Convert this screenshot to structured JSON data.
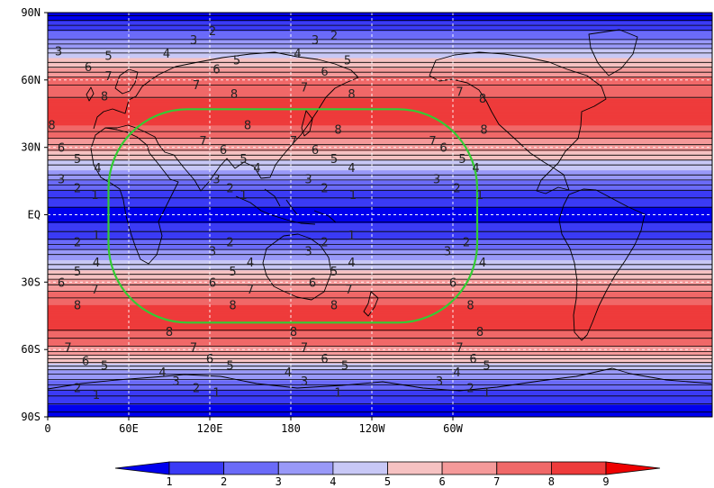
{
  "map": {
    "projection": "lat-lon",
    "grid": "dashed-white",
    "lat_labels": [
      "90N",
      "60N",
      "30N",
      "EQ",
      "30S",
      "60S",
      "90S"
    ],
    "lon_labels": [
      "0",
      "60E",
      "120E",
      "180",
      "120W",
      "60W"
    ],
    "lat_label_values": [
      90,
      60,
      30,
      0,
      -30,
      -60,
      -90
    ],
    "lon_label_values": [
      0,
      60,
      120,
      180,
      240,
      300
    ],
    "region_box": {
      "shape": "rounded-rectangle",
      "color": "#33cc33",
      "lon_range": [
        45,
        318
      ],
      "lat_range": [
        -48,
        47
      ]
    },
    "contour_labels": [
      {
        "text": "3",
        "lon": 8,
        "lat": 73
      },
      {
        "text": "5",
        "lon": 45,
        "lat": 71
      },
      {
        "text": "4",
        "lon": 88,
        "lat": 72
      },
      {
        "text": "3",
        "lon": 108,
        "lat": 78
      },
      {
        "text": "2",
        "lon": 122,
        "lat": 82
      },
      {
        "text": "5",
        "lon": 140,
        "lat": 69
      },
      {
        "text": "6",
        "lon": 125,
        "lat": 65
      },
      {
        "text": "7",
        "lon": 110,
        "lat": 58
      },
      {
        "text": "8",
        "lon": 138,
        "lat": 54
      },
      {
        "text": "6",
        "lon": 30,
        "lat": 66
      },
      {
        "text": "7",
        "lon": 45,
        "lat": 62
      },
      {
        "text": "8",
        "lon": 42,
        "lat": 53
      },
      {
        "text": "4",
        "lon": 185,
        "lat": 72
      },
      {
        "text": "3",
        "lon": 198,
        "lat": 78
      },
      {
        "text": "2",
        "lon": 212,
        "lat": 80
      },
      {
        "text": "6",
        "lon": 205,
        "lat": 64
      },
      {
        "text": "5",
        "lon": 222,
        "lat": 69
      },
      {
        "text": "7",
        "lon": 190,
        "lat": 57
      },
      {
        "text": "8",
        "lon": 225,
        "lat": 54
      },
      {
        "text": "7",
        "lon": 305,
        "lat": 55
      },
      {
        "text": "8",
        "lon": 322,
        "lat": 52
      },
      {
        "text": "8",
        "lon": 3,
        "lat": 40
      },
      {
        "text": "7",
        "lon": 115,
        "lat": 33
      },
      {
        "text": "6",
        "lon": 130,
        "lat": 29
      },
      {
        "text": "5",
        "lon": 145,
        "lat": 25
      },
      {
        "text": "4",
        "lon": 155,
        "lat": 21
      },
      {
        "text": "8",
        "lon": 148,
        "lat": 40
      },
      {
        "text": "7",
        "lon": 182,
        "lat": 33
      },
      {
        "text": "6",
        "lon": 198,
        "lat": 29
      },
      {
        "text": "5",
        "lon": 212,
        "lat": 25
      },
      {
        "text": "4",
        "lon": 225,
        "lat": 21
      },
      {
        "text": "3",
        "lon": 193,
        "lat": 16
      },
      {
        "text": "2",
        "lon": 205,
        "lat": 12
      },
      {
        "text": "1",
        "lon": 226,
        "lat": 9
      },
      {
        "text": "8",
        "lon": 215,
        "lat": 38
      },
      {
        "text": "7",
        "lon": 285,
        "lat": 33
      },
      {
        "text": "6",
        "lon": 293,
        "lat": 30
      },
      {
        "text": "5",
        "lon": 307,
        "lat": 25
      },
      {
        "text": "4",
        "lon": 317,
        "lat": 21
      },
      {
        "text": "3",
        "lon": 288,
        "lat": 16
      },
      {
        "text": "2",
        "lon": 303,
        "lat": 12
      },
      {
        "text": "1",
        "lon": 320,
        "lat": 9
      },
      {
        "text": "8",
        "lon": 323,
        "lat": 38
      },
      {
        "text": "6",
        "lon": 10,
        "lat": 30
      },
      {
        "text": "5",
        "lon": 22,
        "lat": 25
      },
      {
        "text": "4",
        "lon": 37,
        "lat": 21
      },
      {
        "text": "3",
        "lon": 10,
        "lat": 16
      },
      {
        "text": "2",
        "lon": 22,
        "lat": 12
      },
      {
        "text": "1",
        "lon": 35,
        "lat": 9
      },
      {
        "text": "3",
        "lon": 125,
        "lat": 16
      },
      {
        "text": "2",
        "lon": 135,
        "lat": 12
      },
      {
        "text": "1",
        "lon": 145,
        "lat": 9
      },
      {
        "text": "2",
        "lon": 22,
        "lat": -12
      },
      {
        "text": "1",
        "lon": 36,
        "lat": -9
      },
      {
        "text": "4",
        "lon": 36,
        "lat": -21
      },
      {
        "text": "5",
        "lon": 22,
        "lat": -25
      },
      {
        "text": "6",
        "lon": 10,
        "lat": -30
      },
      {
        "text": "7",
        "lon": 35,
        "lat": -33
      },
      {
        "text": "8",
        "lon": 22,
        "lat": -40
      },
      {
        "text": "3",
        "lon": 122,
        "lat": -16
      },
      {
        "text": "2",
        "lon": 135,
        "lat": -12
      },
      {
        "text": "5",
        "lon": 137,
        "lat": -25
      },
      {
        "text": "4",
        "lon": 150,
        "lat": -21
      },
      {
        "text": "6",
        "lon": 122,
        "lat": -30
      },
      {
        "text": "7",
        "lon": 150,
        "lat": -33
      },
      {
        "text": "8",
        "lon": 137,
        "lat": -40
      },
      {
        "text": "3",
        "lon": 193,
        "lat": -16
      },
      {
        "text": "2",
        "lon": 205,
        "lat": -12
      },
      {
        "text": "1",
        "lon": 225,
        "lat": -9
      },
      {
        "text": "5",
        "lon": 212,
        "lat": -25
      },
      {
        "text": "4",
        "lon": 225,
        "lat": -21
      },
      {
        "text": "6",
        "lon": 196,
        "lat": -30
      },
      {
        "text": "7",
        "lon": 223,
        "lat": -33
      },
      {
        "text": "8",
        "lon": 212,
        "lat": -40
      },
      {
        "text": "3",
        "lon": 296,
        "lat": -16
      },
      {
        "text": "2",
        "lon": 310,
        "lat": -12
      },
      {
        "text": "4",
        "lon": 322,
        "lat": -21
      },
      {
        "text": "6",
        "lon": 300,
        "lat": -30
      },
      {
        "text": "8",
        "lon": 313,
        "lat": -40
      },
      {
        "text": "8",
        "lon": 90,
        "lat": -52
      },
      {
        "text": "8",
        "lon": 182,
        "lat": -52
      },
      {
        "text": "8",
        "lon": 320,
        "lat": -52
      },
      {
        "text": "7",
        "lon": 15,
        "lat": -59
      },
      {
        "text": "6",
        "lon": 28,
        "lat": -65
      },
      {
        "text": "5",
        "lon": 42,
        "lat": -67
      },
      {
        "text": "4",
        "lon": 85,
        "lat": -70
      },
      {
        "text": "3",
        "lon": 95,
        "lat": -74
      },
      {
        "text": "2",
        "lon": 110,
        "lat": -77
      },
      {
        "text": "1",
        "lon": 125,
        "lat": -79
      },
      {
        "text": "2",
        "lon": 22,
        "lat": -77
      },
      {
        "text": "1",
        "lon": 36,
        "lat": -80
      },
      {
        "text": "7",
        "lon": 108,
        "lat": -59
      },
      {
        "text": "6",
        "lon": 120,
        "lat": -64
      },
      {
        "text": "5",
        "lon": 135,
        "lat": -67
      },
      {
        "text": "7",
        "lon": 190,
        "lat": -59
      },
      {
        "text": "6",
        "lon": 205,
        "lat": -64
      },
      {
        "text": "5",
        "lon": 220,
        "lat": -67
      },
      {
        "text": "4",
        "lon": 178,
        "lat": -70
      },
      {
        "text": "3",
        "lon": 190,
        "lat": -74
      },
      {
        "text": "7",
        "lon": 305,
        "lat": -59
      },
      {
        "text": "6",
        "lon": 315,
        "lat": -64
      },
      {
        "text": "5",
        "lon": 325,
        "lat": -67
      },
      {
        "text": "4",
        "lon": 303,
        "lat": -70
      },
      {
        "text": "3",
        "lon": 290,
        "lat": -74
      },
      {
        "text": "2",
        "lon": 313,
        "lat": -77
      },
      {
        "text": "1",
        "lon": 325,
        "lat": -79
      },
      {
        "text": "1",
        "lon": 215,
        "lat": -79
      }
    ]
  },
  "chart_data": {
    "type": "heatmap",
    "title": "",
    "xlabel": "",
    "ylabel": "",
    "xlim": [
      0,
      360
    ],
    "ylim": [
      -90,
      90
    ],
    "colorbar_levels": [
      1,
      2,
      3,
      4,
      5,
      6,
      7,
      8,
      9
    ],
    "colorbar_colors": [
      "#0000ee",
      "#3b3bf5",
      "#6b6bf8",
      "#9999f8",
      "#c8c8f6",
      "#f6c2c2",
      "#f59a9a",
      "#f06868",
      "#ee3b3b",
      "#ee0000"
    ],
    "latitudes": [
      -90,
      -80,
      -70,
      -60,
      -50,
      -40,
      -30,
      -20,
      -10,
      0,
      10,
      20,
      30,
      40,
      50,
      60,
      70,
      80,
      90
    ],
    "zonal_values": [
      0.2,
      1.6,
      3.7,
      6.8,
      8.2,
      8.0,
      6.3,
      4.0,
      1.8,
      0.6,
      1.8,
      4.0,
      6.3,
      8.0,
      8.2,
      7.3,
      5.0,
      2.5,
      0.2
    ]
  }
}
